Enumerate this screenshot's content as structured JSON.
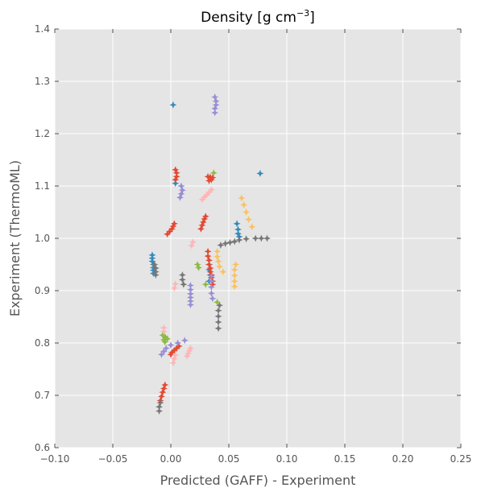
{
  "chart_data": {
    "type": "scatter",
    "title": "Density [g cm$^{-3}$]",
    "title_text": "Density [g cm",
    "title_exp": "−3",
    "title_end": "]",
    "xlabel": "Predicted (GAFF) - Experiment",
    "ylabel": "Experiment (ThermoML)",
    "xlim": [
      -0.1,
      0.25
    ],
    "ylim": [
      0.6,
      1.4
    ],
    "xticks": [
      "−0.10",
      "−0.05",
      "0.00",
      "0.05",
      "0.10",
      "0.15",
      "0.20",
      "0.25"
    ],
    "yticks": [
      "0.6",
      "0.7",
      "0.8",
      "0.9",
      "1.0",
      "1.1",
      "1.2",
      "1.3",
      "1.4"
    ],
    "grid": true,
    "background": "#e5e5e5",
    "marker": "star-4",
    "series": [
      {
        "color": "#348abd",
        "points": [
          [
            0.002,
            1.255
          ],
          [
            0.077,
            1.124
          ],
          [
            0.004,
            1.105
          ],
          [
            -0.016,
            0.968
          ],
          [
            -0.016,
            0.962
          ],
          [
            -0.016,
            0.956
          ],
          [
            -0.015,
            0.95
          ],
          [
            -0.015,
            0.944
          ],
          [
            -0.015,
            0.939
          ],
          [
            -0.015,
            0.933
          ],
          [
            0.057,
            1.028
          ],
          [
            0.058,
            1.017
          ],
          [
            0.058,
            1.009
          ],
          [
            0.059,
            1.003
          ],
          [
            0.033,
            0.95
          ],
          [
            0.033,
            0.94
          ],
          [
            0.034,
            0.93
          ],
          [
            0.033,
            0.918
          ]
        ]
      },
      {
        "color": "#e24a33",
        "points": [
          [
            0.004,
            1.131
          ],
          [
            0.005,
            1.125
          ],
          [
            0.005,
            1.118
          ],
          [
            0.004,
            1.112
          ],
          [
            0.032,
            1.118
          ],
          [
            0.034,
            1.117
          ],
          [
            0.036,
            1.116
          ],
          [
            0.033,
            1.11
          ],
          [
            0.035,
            1.112
          ],
          [
            -0.003,
            1.008
          ],
          [
            -0.001,
            1.013
          ],
          [
            0.001,
            1.018
          ],
          [
            0.002,
            1.023
          ],
          [
            0.003,
            1.028
          ],
          [
            0.026,
            1.018
          ],
          [
            0.027,
            1.025
          ],
          [
            0.028,
            1.031
          ],
          [
            0.029,
            1.037
          ],
          [
            0.03,
            1.042
          ],
          [
            0.032,
            0.975
          ],
          [
            0.032,
            0.966
          ],
          [
            0.033,
            0.958
          ],
          [
            0.033,
            0.95
          ],
          [
            0.034,
            0.943
          ],
          [
            0.034,
            0.936
          ],
          [
            0.035,
            0.93
          ],
          [
            0.035,
            0.925
          ],
          [
            0.036,
            0.918
          ],
          [
            0.036,
            0.912
          ],
          [
            0.0,
            0.778
          ],
          [
            0.001,
            0.782
          ],
          [
            0.003,
            0.786
          ],
          [
            0.005,
            0.79
          ],
          [
            0.007,
            0.794
          ],
          [
            -0.009,
            0.69
          ],
          [
            -0.008,
            0.698
          ],
          [
            -0.007,
            0.706
          ],
          [
            -0.006,
            0.713
          ],
          [
            -0.005,
            0.72
          ]
        ]
      },
      {
        "color": "#988ed5",
        "points": [
          [
            0.038,
            1.27
          ],
          [
            0.039,
            1.262
          ],
          [
            0.039,
            1.255
          ],
          [
            0.038,
            1.248
          ],
          [
            0.038,
            1.24
          ],
          [
            0.009,
            1.1
          ],
          [
            0.01,
            1.092
          ],
          [
            0.009,
            1.085
          ],
          [
            0.008,
            1.078
          ],
          [
            0.017,
            0.91
          ],
          [
            0.017,
            0.902
          ],
          [
            0.017,
            0.894
          ],
          [
            0.017,
            0.887
          ],
          [
            0.017,
            0.88
          ],
          [
            0.017,
            0.873
          ],
          [
            0.035,
            0.928
          ],
          [
            0.035,
            0.918
          ],
          [
            0.035,
            0.907
          ],
          [
            0.035,
            0.895
          ],
          [
            0.036,
            0.885
          ],
          [
            -0.008,
            0.778
          ],
          [
            -0.006,
            0.784
          ],
          [
            -0.004,
            0.79
          ],
          [
            0.0,
            0.796
          ],
          [
            0.006,
            0.8
          ],
          [
            0.012,
            0.805
          ]
        ]
      },
      {
        "color": "#777777",
        "points": [
          [
            -0.014,
            0.95
          ],
          [
            -0.013,
            0.943
          ],
          [
            -0.013,
            0.936
          ],
          [
            -0.013,
            0.93
          ],
          [
            0.01,
            0.93
          ],
          [
            0.01,
            0.921
          ],
          [
            0.011,
            0.912
          ],
          [
            0.043,
            0.987
          ],
          [
            0.047,
            0.99
          ],
          [
            0.051,
            0.992
          ],
          [
            0.055,
            0.994
          ],
          [
            0.059,
            0.997
          ],
          [
            0.065,
            0.999
          ],
          [
            0.073,
            1.0
          ],
          [
            0.078,
            1.0
          ],
          [
            0.083,
            1.0
          ],
          [
            0.042,
            0.872
          ],
          [
            0.041,
            0.862
          ],
          [
            0.041,
            0.851
          ],
          [
            0.041,
            0.84
          ],
          [
            0.041,
            0.828
          ],
          [
            -0.01,
            0.67
          ],
          [
            -0.01,
            0.678
          ],
          [
            -0.009,
            0.686
          ]
        ]
      },
      {
        "color": "#fbc15e",
        "points": [
          [
            0.061,
            1.077
          ],
          [
            0.063,
            1.064
          ],
          [
            0.065,
            1.05
          ],
          [
            0.067,
            1.036
          ],
          [
            0.07,
            1.022
          ],
          [
            0.04,
            0.975
          ],
          [
            0.04,
            0.965
          ],
          [
            0.041,
            0.956
          ],
          [
            0.042,
            0.946
          ],
          [
            0.045,
            0.936
          ],
          [
            0.056,
            0.95
          ],
          [
            0.055,
            0.94
          ],
          [
            0.055,
            0.929
          ],
          [
            0.055,
            0.918
          ],
          [
            0.055,
            0.908
          ]
        ]
      },
      {
        "color": "#8eba42",
        "points": [
          [
            0.037,
            1.125
          ],
          [
            0.023,
            0.95
          ],
          [
            0.024,
            0.944
          ],
          [
            -0.007,
            0.815
          ],
          [
            -0.005,
            0.812
          ],
          [
            -0.003,
            0.808
          ],
          [
            -0.005,
            0.802
          ],
          [
            -0.006,
            0.806
          ],
          [
            0.04,
            0.878
          ],
          [
            0.03,
            0.912
          ]
        ]
      },
      {
        "color": "#ffb5b8",
        "points": [
          [
            0.027,
            1.074
          ],
          [
            0.029,
            1.079
          ],
          [
            0.031,
            1.083
          ],
          [
            0.033,
            1.088
          ],
          [
            0.035,
            1.093
          ],
          [
            0.018,
            0.986
          ],
          [
            0.019,
            0.993
          ],
          [
            0.003,
            0.905
          ],
          [
            0.004,
            0.913
          ],
          [
            -0.006,
            0.829
          ],
          [
            -0.006,
            0.822
          ],
          [
            0.014,
            0.775
          ],
          [
            0.015,
            0.78
          ],
          [
            0.016,
            0.785
          ],
          [
            0.017,
            0.79
          ],
          [
            0.002,
            0.762
          ],
          [
            0.003,
            0.77
          ],
          [
            0.004,
            0.777
          ]
        ]
      }
    ]
  }
}
